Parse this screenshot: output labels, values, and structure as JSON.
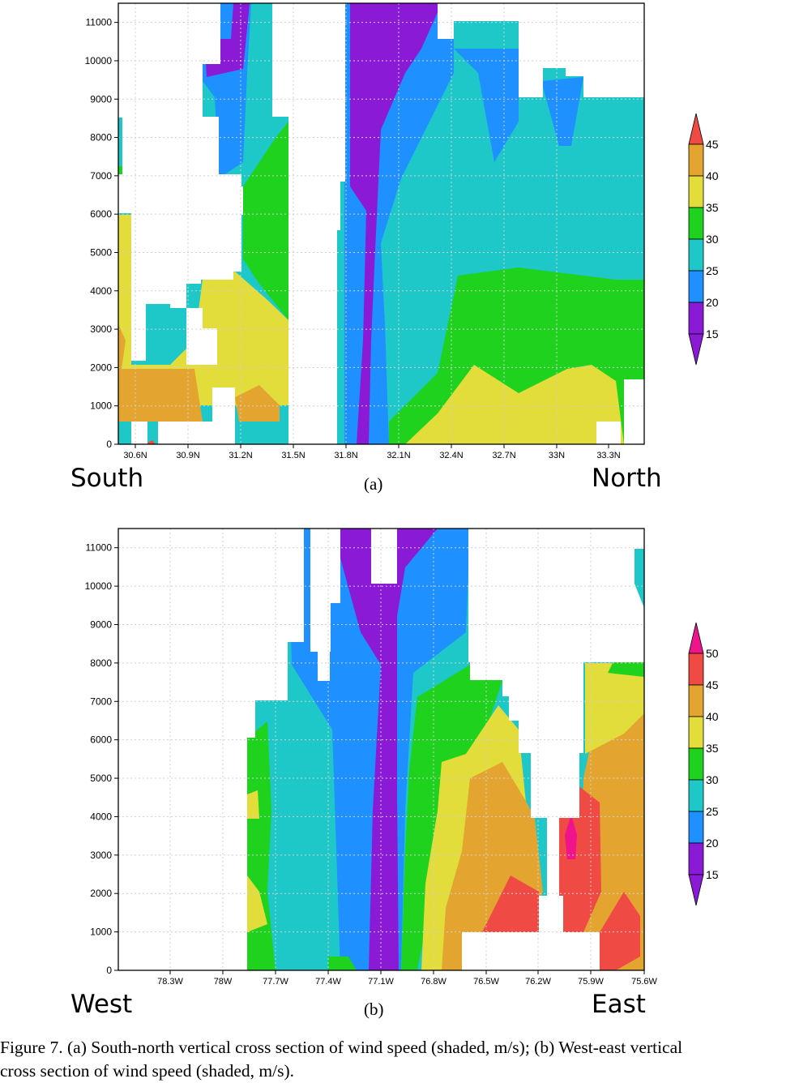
{
  "charts": [
    {
      "id": "a",
      "direction_left": "South",
      "direction_right": "North",
      "sublabel": "(a)",
      "colorbar_labels": [
        "45",
        "40",
        "35",
        "30",
        "25",
        "20",
        "15"
      ]
    },
    {
      "id": "b",
      "direction_left": "West",
      "direction_right": "East",
      "sublabel": "(b)",
      "colorbar_labels": [
        "50",
        "45",
        "40",
        "35",
        "30",
        "25",
        "20",
        "15"
      ]
    }
  ],
  "caption": {
    "line1": "Figure 7.  (a) South-north vertical cross section of wind speed (shaded, m/s); (b) West-east vertical",
    "line2": "cross section of wind speed (shaded, m/s)."
  },
  "chart_data": [
    {
      "type": "heatmap",
      "title": "",
      "xlabel": "",
      "ylabel": "",
      "x_tick_labels": [
        "30.6N",
        "30.9N",
        "31.2N",
        "31.5N",
        "31.8N",
        "32.1N",
        "32.4N",
        "32.7N",
        "33N",
        "33.3N"
      ],
      "y_tick_labels": [
        "0",
        "1000",
        "2000",
        "3000",
        "4000",
        "5000",
        "6000",
        "7000",
        "8000",
        "9000",
        "10000",
        "11000"
      ],
      "ylim": [
        0,
        11500
      ],
      "legend": {
        "type": "colorbar",
        "placement": "right",
        "levels": [
          15,
          20,
          25,
          30,
          35,
          40,
          45
        ],
        "colors": [
          "#8a1ad6",
          "#1e90ff",
          "#1ec8c8",
          "#1ed21e",
          "#e3dd3c",
          "#e3a530",
          "#f04a44"
        ]
      },
      "grid": true
    },
    {
      "type": "heatmap",
      "title": "",
      "xlabel": "",
      "ylabel": "",
      "x_tick_labels": [
        "78.3W",
        "78W",
        "77.7W",
        "77.4W",
        "77.1W",
        "76.8W",
        "76.5W",
        "76.2W",
        "75.9W",
        "75.6W"
      ],
      "y_tick_labels": [
        "0",
        "1000",
        "2000",
        "3000",
        "4000",
        "5000",
        "6000",
        "7000",
        "8000",
        "9000",
        "10000",
        "11000"
      ],
      "ylim": [
        0,
        11500
      ],
      "legend": {
        "type": "colorbar",
        "placement": "right",
        "levels": [
          15,
          20,
          25,
          30,
          35,
          40,
          45,
          50
        ],
        "colors": [
          "#8a1ad6",
          "#1e90ff",
          "#1ec8c8",
          "#1ed21e",
          "#e3dd3c",
          "#e3a530",
          "#f04a44",
          "#f0148c"
        ]
      },
      "grid": true
    }
  ]
}
